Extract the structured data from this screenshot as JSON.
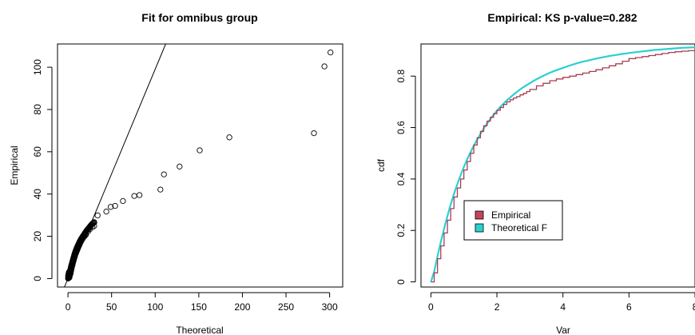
{
  "chart_data": [
    {
      "type": "scatter",
      "title": "Fit for omnibus group",
      "xlabel": "Theoretical",
      "ylabel": "Empirical",
      "xlim": [
        -12,
        315
      ],
      "ylim": [
        -4,
        111
      ],
      "xticks": [
        0,
        50,
        100,
        150,
        200,
        250,
        300
      ],
      "yticks": [
        0,
        20,
        40,
        60,
        80,
        100
      ],
      "reference_line": {
        "x": [
          -5,
          112
        ],
        "y": [
          -5,
          111
        ]
      },
      "dense_points": [
        [
          0.2,
          0.1
        ],
        [
          0.5,
          0.4
        ],
        [
          0.8,
          0.6
        ],
        [
          1,
          1
        ],
        [
          1.2,
          1.5
        ],
        [
          1.5,
          1.8
        ],
        [
          1.8,
          2.4
        ],
        [
          2,
          2.9
        ],
        [
          2.3,
          3.3
        ],
        [
          2.6,
          3.9
        ],
        [
          2.9,
          4.3
        ],
        [
          3.2,
          4.9
        ],
        [
          3.5,
          5.4
        ],
        [
          3.8,
          5.9
        ],
        [
          4.1,
          6.4
        ],
        [
          4.4,
          6.9
        ],
        [
          4.8,
          7.4
        ],
        [
          5.1,
          7.9
        ],
        [
          5.5,
          8.5
        ],
        [
          5.9,
          9.1
        ],
        [
          6.3,
          9.7
        ],
        [
          6.7,
          10.3
        ],
        [
          7.1,
          10.9
        ],
        [
          7.6,
          11.6
        ],
        [
          8.1,
          12.2
        ],
        [
          8.6,
          12.8
        ],
        [
          9.1,
          13.4
        ],
        [
          9.7,
          14
        ],
        [
          10.3,
          14.6
        ],
        [
          10.9,
          15.2
        ],
        [
          11.5,
          15.8
        ],
        [
          12.2,
          16.4
        ],
        [
          12.9,
          17
        ],
        [
          13.6,
          17.6
        ],
        [
          14.4,
          18.2
        ],
        [
          15.2,
          18.8
        ],
        [
          16,
          19.3
        ],
        [
          16.8,
          19.8
        ],
        [
          17.6,
          20.3
        ],
        [
          18.4,
          20.8
        ],
        [
          19.2,
          21.3
        ],
        [
          20,
          21.8
        ],
        [
          20.8,
          22.3
        ],
        [
          21.6,
          22.8
        ],
        [
          22.4,
          23.2
        ],
        [
          23.2,
          23.6
        ],
        [
          24,
          24
        ],
        [
          24.8,
          24.4
        ],
        [
          25.6,
          24.8
        ],
        [
          26.4,
          25.2
        ],
        [
          27.2,
          25.6
        ],
        [
          28,
          26
        ],
        [
          29,
          26.3
        ],
        [
          30,
          26.6
        ],
        [
          0.3,
          1.2
        ],
        [
          0.6,
          2.1
        ],
        [
          1.1,
          3
        ],
        [
          1.6,
          0.5
        ],
        [
          2.2,
          1.6
        ],
        [
          2.8,
          2.4
        ],
        [
          3.4,
          3.5
        ],
        [
          4,
          4.7
        ],
        [
          4.6,
          5.8
        ],
        [
          5.2,
          6.7
        ],
        [
          5.8,
          7.7
        ],
        [
          6.5,
          8.7
        ],
        [
          7.2,
          9.8
        ],
        [
          8,
          10.8
        ],
        [
          8.8,
          11.9
        ],
        [
          9.6,
          12.8
        ],
        [
          10.5,
          13.7
        ],
        [
          11.4,
          14.6
        ],
        [
          12.4,
          15.5
        ],
        [
          13.4,
          16.4
        ],
        [
          14.5,
          17.3
        ],
        [
          15.6,
          18.1
        ],
        [
          16.7,
          18.9
        ],
        [
          17.9,
          19.6
        ],
        [
          19.1,
          20.2
        ],
        [
          20.4,
          20.8
        ]
      ],
      "points": [
        [
          23,
          22.3
        ],
        [
          25,
          23.3
        ],
        [
          28,
          24.3
        ],
        [
          30,
          24.9
        ],
        [
          34,
          29.9
        ],
        [
          44,
          31.7
        ],
        [
          49,
          33.9
        ],
        [
          54,
          34.4
        ],
        [
          63,
          36.7
        ],
        [
          76,
          39.1
        ],
        [
          82,
          39.5
        ],
        [
          106,
          42.1
        ],
        [
          110,
          49.3
        ],
        [
          128,
          53
        ],
        [
          151,
          60.7
        ],
        [
          185,
          66.8
        ],
        [
          282,
          68.8
        ],
        [
          294,
          100.4
        ],
        [
          301,
          107
        ]
      ],
      "colors": {
        "points": "#000000",
        "line": "#000000"
      }
    },
    {
      "type": "line",
      "title": "Empirical: KS p-value=0.282",
      "xlabel": "Var",
      "ylabel": "cdf",
      "xlim": [
        -0.3,
        8
      ],
      "ylim": [
        -0.02,
        0.925
      ],
      "xticks": [
        0,
        2,
        4,
        6,
        8
      ],
      "yticks": [
        0.0,
        0.2,
        0.4,
        0.6,
        0.8
      ],
      "series": [
        {
          "name": "Empirical",
          "color": "#c4455a",
          "x": [
            0,
            0.1,
            0.2,
            0.3,
            0.4,
            0.5,
            0.6,
            0.7,
            0.8,
            0.9,
            1,
            1.1,
            1.2,
            1.3,
            1.4,
            1.5,
            1.6,
            1.7,
            1.8,
            1.9,
            2,
            2.1,
            2.2,
            2.3,
            2.4,
            2.5,
            2.6,
            2.7,
            2.8,
            2.9,
            3,
            3.2,
            3.4,
            3.6,
            3.8,
            4,
            4.2,
            4.4,
            4.6,
            4.8,
            5,
            5.2,
            5.4,
            5.6,
            5.8,
            6,
            6.2,
            6.4,
            6.6,
            6.8,
            7,
            7.2,
            7.4,
            7.6,
            7.8,
            8
          ],
          "y": [
            0,
            0.035,
            0.09,
            0.14,
            0.19,
            0.24,
            0.285,
            0.33,
            0.365,
            0.4,
            0.435,
            0.468,
            0.5,
            0.532,
            0.56,
            0.585,
            0.607,
            0.625,
            0.64,
            0.654,
            0.667,
            0.678,
            0.69,
            0.7,
            0.708,
            0.715,
            0.72,
            0.727,
            0.733,
            0.74,
            0.748,
            0.762,
            0.772,
            0.782,
            0.789,
            0.795,
            0.8,
            0.806,
            0.812,
            0.818,
            0.825,
            0.832,
            0.84,
            0.848,
            0.858,
            0.868,
            0.872,
            0.876,
            0.88,
            0.884,
            0.888,
            0.892,
            0.895,
            0.897,
            0.899,
            0.9
          ]
        },
        {
          "name": "Theoretical F",
          "color": "#2bd0d2",
          "x": [
            0,
            0.1,
            0.2,
            0.3,
            0.4,
            0.5,
            0.6,
            0.7,
            0.8,
            0.9,
            1,
            1.1,
            1.2,
            1.3,
            1.4,
            1.5,
            1.6,
            1.7,
            1.8,
            1.9,
            2,
            2.1,
            2.2,
            2.3,
            2.4,
            2.5,
            2.6,
            2.7,
            2.8,
            2.9,
            3,
            3.2,
            3.4,
            3.6,
            3.8,
            4,
            4.2,
            4.4,
            4.6,
            4.8,
            5,
            5.2,
            5.4,
            5.6,
            5.8,
            6,
            6.2,
            6.4,
            6.6,
            6.8,
            7,
            7.2,
            7.4,
            7.6,
            7.8,
            8
          ],
          "y": [
            0,
            0.04,
            0.1,
            0.155,
            0.207,
            0.256,
            0.301,
            0.342,
            0.38,
            0.415,
            0.447,
            0.477,
            0.504,
            0.53,
            0.553,
            0.575,
            0.596,
            0.615,
            0.633,
            0.65,
            0.665,
            0.68,
            0.693,
            0.706,
            0.717,
            0.728,
            0.738,
            0.748,
            0.757,
            0.765,
            0.773,
            0.788,
            0.801,
            0.813,
            0.823,
            0.832,
            0.841,
            0.849,
            0.856,
            0.862,
            0.868,
            0.873,
            0.878,
            0.882,
            0.886,
            0.89,
            0.893,
            0.896,
            0.899,
            0.902,
            0.904,
            0.906,
            0.908,
            0.91,
            0.911,
            0.912
          ]
        }
      ],
      "legend": {
        "labels": [
          "Empirical",
          "Theoretical F"
        ],
        "placement": "center-left"
      }
    }
  ]
}
